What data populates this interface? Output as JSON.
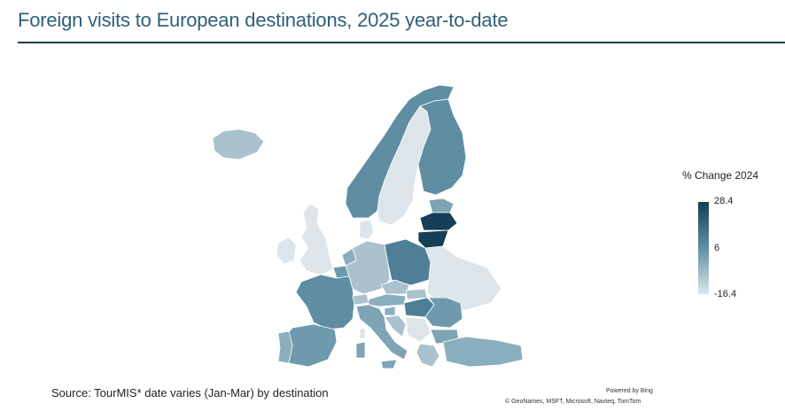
{
  "title": "Foreign visits to European destinations, 2025 year-to-date",
  "legend": {
    "title": "% Change 2024",
    "max": "28.4",
    "mid": "6",
    "min": "-16.4",
    "color_high": "#163e56",
    "color_mid": "#5f8ea3",
    "color_low": "#dce7ec"
  },
  "source": "Source: TourMIS* date varies (Jan-Mar) by destination",
  "powered_by": "Powered by Bing",
  "attribution": "© GeoNames, MSFT, Microsoft, Navteq, TomTom",
  "regions": [
    {
      "id": "iceland",
      "color": "#a9c2ce"
    },
    {
      "id": "norway",
      "color": "#5f8ea3"
    },
    {
      "id": "sweden",
      "color": "#dde5ea"
    },
    {
      "id": "finland",
      "color": "#5f8ea3"
    },
    {
      "id": "estonia",
      "color": "#7ea4b5"
    },
    {
      "id": "latvia",
      "color": "#163e56"
    },
    {
      "id": "lithuania",
      "color": "#163e56"
    },
    {
      "id": "uk",
      "color": "#dde5ea"
    },
    {
      "id": "ireland",
      "color": "#dde5ea"
    },
    {
      "id": "denmark",
      "color": "#dde5ea"
    },
    {
      "id": "netherlands",
      "color": "#8aaebe"
    },
    {
      "id": "belgium",
      "color": "#6f9aad"
    },
    {
      "id": "germany",
      "color": "#a9c2ce"
    },
    {
      "id": "poland",
      "color": "#4f7f96"
    },
    {
      "id": "belarus-ukraine",
      "color": "#dde5ea"
    },
    {
      "id": "france",
      "color": "#5f8ea3"
    },
    {
      "id": "switzerland",
      "color": "#a9c2ce"
    },
    {
      "id": "austria",
      "color": "#8aaebe"
    },
    {
      "id": "czechia",
      "color": "#a9c2ce"
    },
    {
      "id": "slovakia",
      "color": "#a9c2ce"
    },
    {
      "id": "hungary",
      "color": "#4f7f96"
    },
    {
      "id": "romania",
      "color": "#6f9aad"
    },
    {
      "id": "slovenia",
      "color": "#8aaebe"
    },
    {
      "id": "croatia",
      "color": "#a9c2ce"
    },
    {
      "id": "serbia",
      "color": "#dde5ea"
    },
    {
      "id": "bulgaria",
      "color": "#7ea4b5"
    },
    {
      "id": "italy",
      "color": "#7ea4b5"
    },
    {
      "id": "spain",
      "color": "#6f9aad"
    },
    {
      "id": "portugal",
      "color": "#8aaebe"
    },
    {
      "id": "greece",
      "color": "#a9c2ce"
    },
    {
      "id": "turkey",
      "color": "#8aaebe"
    },
    {
      "id": "corsica",
      "color": "#dde5ea"
    },
    {
      "id": "sardinia",
      "color": "#7ea4b5"
    },
    {
      "id": "sicily",
      "color": "#7ea4b5"
    }
  ]
}
